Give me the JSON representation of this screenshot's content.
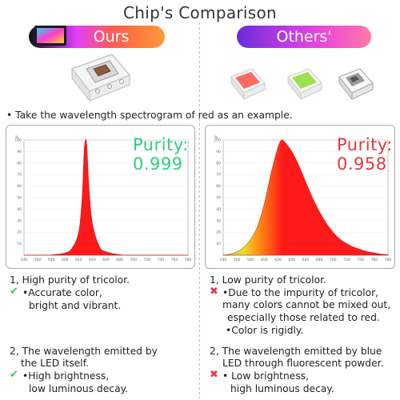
{
  "title": "Chip's Comparison",
  "ours_label": "Ours",
  "others_label": "Others'",
  "note": "• Take the wavelength spectrogram of red as an example.",
  "left_panel": {
    "purity_label": "Purity:",
    "purity_value": "0.999",
    "purity_color": "#2fce7e"
  },
  "right_panel": {
    "purity_label": "Purity:",
    "purity_value": "0.958",
    "purity_color": "#e0393f"
  },
  "chart_axis": {
    "unit": "%",
    "y_ticks": [
      "100",
      "90",
      "80",
      "70",
      "60",
      "50",
      "40",
      "30",
      "20",
      "10"
    ],
    "x_ticks": [
      "540",
      "560",
      "580",
      "600",
      "620",
      "640",
      "660",
      "680",
      "700",
      "720",
      "740",
      "760",
      "780"
    ]
  },
  "left_points": {
    "p1": "1, High purity of tricolor.",
    "p1_bullet": "•Accurate color,",
    "p1_bullet2": "bright and vibrant.",
    "p2_line1": "2, The wavelength emitted by",
    "p2_line2": "the LED itself.",
    "p2_bullet": "•High brightness,",
    "p2_bullet2": "low luminous decay.",
    "check_glyph": "✔"
  },
  "right_points": {
    "p1": "1, Low purity of tricolor.",
    "p1_bullet_l1": "•Due to the impurity of tricolor,",
    "p1_bullet_l2": "many colors cannot be mixed out,",
    "p1_bullet_l3": "especially those related to red.",
    "p1_bullet2": "•Color is rigidly.",
    "p2_line1": "2, The wavelength emitted by blue",
    "p2_line2": "LED through fluorescent powder.",
    "p2_bullet": "• Low brightness,",
    "p2_bullet2": "high luminous decay.",
    "cross_glyph": "✖"
  },
  "colors": {
    "spectrum_red": "#ff1a1a",
    "check_green": "#2ecc71",
    "cross_red": "#e53950"
  },
  "chart_data": [
    {
      "type": "area",
      "x": [
        540,
        560,
        580,
        600,
        610,
        620,
        625,
        628,
        630,
        632,
        635,
        640,
        650,
        660,
        680,
        700,
        720,
        740,
        760,
        780
      ],
      "values": [
        0,
        0,
        0.3,
        2,
        6,
        20,
        50,
        90,
        100,
        95,
        60,
        28,
        8,
        3,
        0.5,
        0,
        0,
        0,
        0,
        0
      ],
      "ylim": [
        0,
        100
      ],
      "xlim": [
        540,
        780
      ]
    },
    {
      "type": "area",
      "x": [
        540,
        550,
        560,
        570,
        580,
        590,
        600,
        610,
        620,
        625,
        630,
        640,
        650,
        660,
        670,
        680,
        690,
        700,
        710,
        720,
        730,
        740,
        750,
        760,
        770,
        780
      ],
      "values": [
        0,
        1,
        3,
        7,
        14,
        25,
        45,
        72,
        94,
        100,
        98,
        90,
        78,
        64,
        50,
        38,
        28,
        20,
        14,
        10,
        7,
        5,
        3,
        2,
        1,
        0.5
      ],
      "ylim": [
        0,
        100
      ],
      "xlim": [
        540,
        780
      ]
    }
  ]
}
